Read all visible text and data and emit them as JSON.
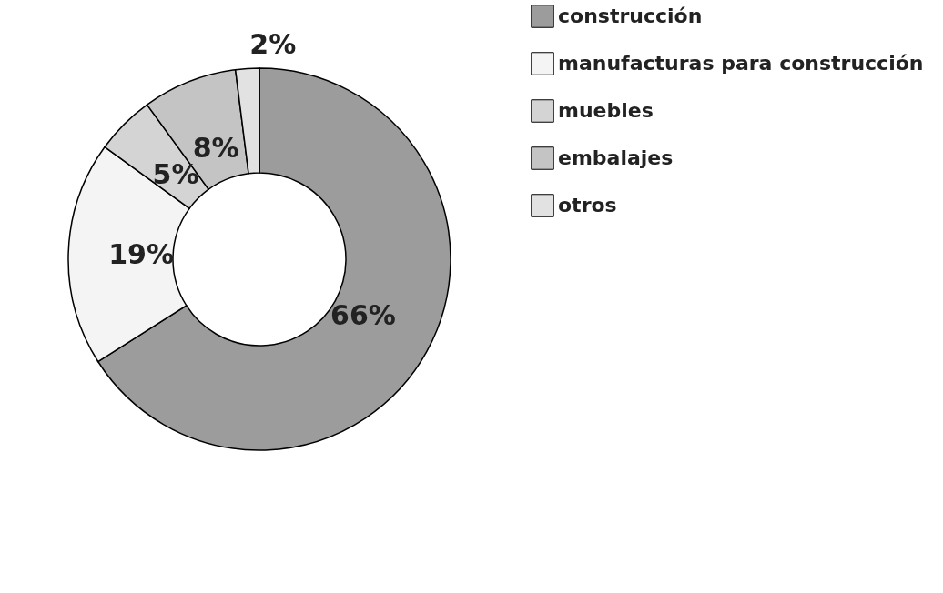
{
  "chart_data": {
    "type": "donut",
    "categories": [
      "construcción",
      "manufacturas para construcción",
      "muebles",
      "embalajes",
      "otros"
    ],
    "values": [
      66,
      19,
      5,
      8,
      2
    ],
    "value_labels": [
      "66%",
      "19%",
      "5%",
      "8%",
      "2%"
    ],
    "colors": [
      "#9c9c9c",
      "#f4f4f4",
      "#d4d4d4",
      "#c4c4c4",
      "#e2e2e2"
    ],
    "legend": "right"
  }
}
